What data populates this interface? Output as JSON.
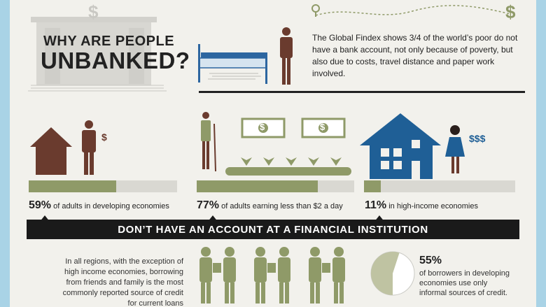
{
  "header": {
    "title_line1": "WHY ARE PEOPLE",
    "title_line2": "UNBANKED?",
    "dollar_glyph": "$",
    "intro": "The Global Findex shows 3/4 of the world’s poor do not have a bank account, not only because of poverty, but also due to costs, travel distance and paper work involved."
  },
  "stats": [
    {
      "percent": "59%",
      "label": "of adults in developing economies",
      "share": 0.59
    },
    {
      "percent": "77%",
      "label": "of adults earning less than $2 a day",
      "share": 0.77
    },
    {
      "percent": "11%",
      "label": "in high-income economies",
      "share": 0.11
    }
  ],
  "icons": {
    "house_dollar": "$",
    "woman_dollars": "$$$",
    "banknote_symbol": "$"
  },
  "banner": "DON’T HAVE AN ACCOUNT AT A FINANCIAL INSTITUTION",
  "borrowing": {
    "text": "In all regions, with the exception of high income economies, borrowing from friends and family is the most commonly reported source of credit for current loans"
  },
  "informal": {
    "percent": "55%",
    "text": "of borrowers in developing economies use only informal sources of credit.",
    "share": 0.55
  },
  "colors": {
    "olive": "#8f9a68",
    "blue": "#1f5f96",
    "brown": "#6a3b2e",
    "banner": "#1a1a1a"
  }
}
